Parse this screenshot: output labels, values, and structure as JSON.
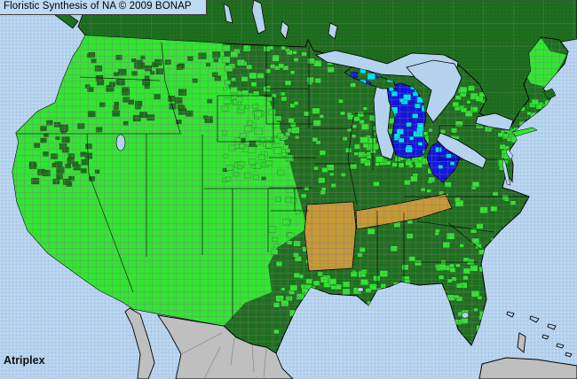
{
  "header": {
    "title": "Floristic Synthesis of NA © 2009 BONAP"
  },
  "footer": {
    "taxon_label": "Atriplex"
  },
  "map": {
    "kind": "county-level floristic distribution map",
    "area": "Continental United States with southern Canada, northern Mexico, Cuba and the Bahamas",
    "palette": {
      "ocean": "#b5d2ee",
      "dark_green": "#1f6e1f",
      "bright_green": "#32e632",
      "blue": "#1414dd",
      "cyan": "#00e6f2",
      "tan": "#c79a38",
      "gray_land": "#bfbfbf",
      "county_line": "#7a7a7a",
      "canada_line": "#6f8572",
      "mexico_line": "#8d8d8d",
      "black": "#000000",
      "title_bg": "#bed9f3"
    },
    "regions": [
      {
        "name": "canada",
        "fill": "dark_green"
      },
      {
        "name": "us-base",
        "fill": "dark_green"
      },
      {
        "name": "western-us",
        "fill": "bright_green"
      },
      {
        "name": "arkansas",
        "fill": "tan"
      },
      {
        "name": "tennessee",
        "fill": "tan"
      },
      {
        "name": "west-virginia",
        "fill": "blue",
        "accent": "cyan"
      },
      {
        "name": "vermont",
        "fill": "blue",
        "accent": "cyan"
      },
      {
        "name": "michigan",
        "fill": "blue",
        "accent": "cyan"
      },
      {
        "name": "maine",
        "fill": "bright_green"
      },
      {
        "name": "great-lakes",
        "fill": "ocean"
      },
      {
        "name": "mexico",
        "fill": "gray_land"
      },
      {
        "name": "cuba",
        "fill": "gray_land"
      },
      {
        "name": "bahamas",
        "fill": "gray_land"
      }
    ]
  }
}
